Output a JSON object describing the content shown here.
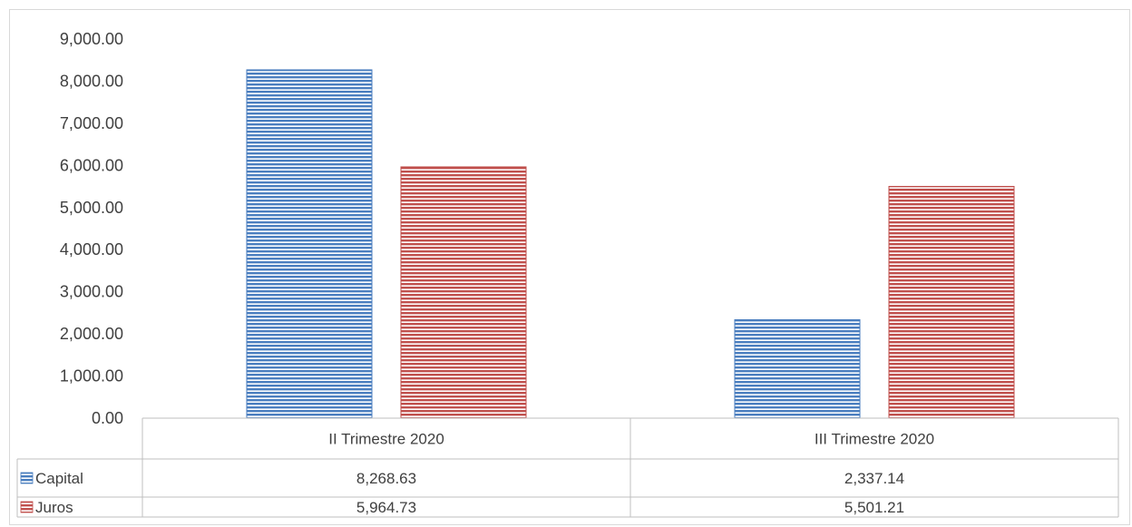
{
  "chart_data": {
    "type": "bar",
    "categories": [
      "II Trimestre 2020",
      "III Trimestre 2020"
    ],
    "series": [
      {
        "name": "Capital",
        "values": [
          8268.63,
          2337.14
        ],
        "color": "#4a7ebf",
        "value_labels": [
          "8,268.63",
          "2,337.14"
        ]
      },
      {
        "name": "Juros",
        "values": [
          5964.73,
          5501.21
        ],
        "color": "#c0504d",
        "value_labels": [
          "5,964.73",
          "5,501.21"
        ]
      }
    ],
    "ylim": [
      0,
      9000
    ],
    "yticks": [
      0,
      1000,
      2000,
      3000,
      4000,
      5000,
      6000,
      7000,
      8000,
      9000
    ],
    "ytick_labels": [
      "0.00",
      "1,000.00",
      "2,000.00",
      "3,000.00",
      "4,000.00",
      "5,000.00",
      "6,000.00",
      "7,000.00",
      "8,000.00",
      "9,000.00"
    ],
    "grid": false,
    "legend": "data-table",
    "fill_pattern": "horizontal-stripes"
  }
}
